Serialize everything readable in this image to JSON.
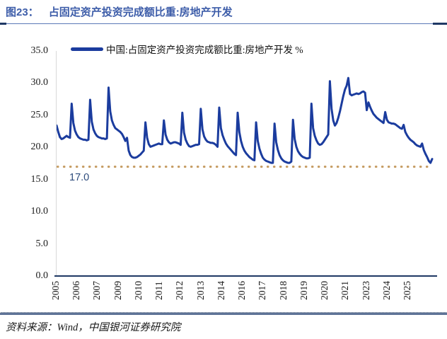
{
  "header": {
    "figure_label": "图23：",
    "title": "占固定资产投资完成额比重:房地产开发"
  },
  "legend": {
    "label": "中国:占固定资产投资完成额比重:房地产开发 %"
  },
  "annotation": {
    "ref_line_label": "17.0"
  },
  "footer": {
    "source": "资料来源：Wind，中国银河证券研究院"
  },
  "colors": {
    "series_line": "#1B3C9E",
    "reference_dotted": "#C69C62",
    "title_blue": "#3D5DA9",
    "axis": "#1F3864",
    "ref_label": "#2E4C7C"
  },
  "chart_data": {
    "type": "line",
    "title": "占固定资产投资完成额比重:房地产开发",
    "xlabel": "",
    "ylabel": "%",
    "ylim": [
      0,
      35
    ],
    "yticks": [
      0,
      5,
      10,
      15,
      20,
      25,
      30,
      35
    ],
    "ytick_decimals": 1,
    "grid": false,
    "legend_position": "top-left",
    "legend_entries": [
      "中国:占固定资产投资完成额比重:房地产开发 %"
    ],
    "xtick_labels": [
      "2005",
      "2006",
      "2007",
      "2009",
      "2010",
      "2011",
      "2012",
      "2013",
      "2014",
      "2016",
      "2017",
      "2018",
      "2019",
      "2020",
      "2021",
      "2023",
      "2024",
      "2025"
    ],
    "reference_line": {
      "value": 17.0,
      "label": "17.0",
      "style": "dotted"
    },
    "series": [
      {
        "name": "中国:占固定资产投资完成额比重:房地产开发",
        "unit": "%",
        "frequency": "monthly cumulative (YTD), Feb–Dec; 2005 starts Apr, 2025 ends mid-year",
        "values_by_year": {
          "2005": [
            23.4,
            22.4,
            21.6,
            21.3,
            21.4,
            21.6,
            21.8,
            21.6,
            21.5
          ],
          "2006": [
            26.8,
            23.8,
            22.6,
            22.0,
            21.6,
            21.4,
            21.3,
            21.2,
            21.2,
            21.1,
            21.2
          ],
          "2007": [
            27.4,
            24.0,
            22.8,
            22.2,
            21.8,
            21.6,
            21.5,
            21.4,
            21.4,
            21.3,
            21.4
          ],
          "2008": [
            29.3,
            25.6,
            24.2,
            23.5,
            23.0,
            22.8,
            22.6,
            22.4,
            22.1,
            21.6,
            21.0
          ],
          "2009": [
            21.5,
            19.5,
            18.8,
            18.5,
            18.4,
            18.4,
            18.5,
            18.7,
            18.9,
            19.2,
            19.5
          ],
          "2010": [
            23.9,
            21.5,
            20.5,
            20.1,
            20.2,
            20.3,
            20.4,
            20.5,
            20.6,
            20.5,
            20.5
          ],
          "2011": [
            24.2,
            22.0,
            21.2,
            20.8,
            20.6,
            20.7,
            20.8,
            20.8,
            20.7,
            20.6,
            20.4
          ],
          "2012": [
            25.4,
            22.3,
            21.2,
            20.6,
            20.2,
            20.1,
            20.2,
            20.3,
            20.4,
            20.4,
            20.5
          ],
          "2013": [
            26.0,
            22.8,
            21.7,
            21.2,
            20.9,
            20.8,
            20.7,
            20.7,
            20.6,
            20.4,
            20.1
          ],
          "2014": [
            26.2,
            23.0,
            21.9,
            21.2,
            20.6,
            20.2,
            19.9,
            19.6,
            19.3,
            19.0,
            18.8
          ],
          "2015": [
            25.4,
            22.4,
            21.0,
            20.1,
            19.5,
            19.1,
            18.8,
            18.5,
            18.3,
            18.1,
            18.0
          ],
          "2016": [
            23.9,
            21.0,
            19.8,
            19.0,
            18.4,
            18.1,
            17.9,
            17.8,
            17.7,
            17.6,
            17.6
          ],
          "2017": [
            23.7,
            20.8,
            19.6,
            18.8,
            18.3,
            18.0,
            17.8,
            17.7,
            17.6,
            17.6,
            17.8
          ],
          "2018": [
            24.3,
            21.3,
            20.1,
            19.4,
            19.0,
            18.7,
            18.5,
            18.4,
            18.3,
            18.3,
            18.4
          ],
          "2019": [
            26.8,
            23.0,
            21.8,
            21.1,
            20.6,
            20.4,
            20.5,
            20.8,
            21.2,
            21.6,
            22.0
          ],
          "2020": [
            30.3,
            26.0,
            24.2,
            23.4,
            23.8,
            24.6,
            25.6,
            26.8,
            28.0,
            29.0,
            29.6
          ],
          "2021": [
            30.8,
            28.3,
            28.1,
            28.2,
            28.3,
            28.4,
            28.3,
            28.4,
            28.6,
            28.7,
            28.5
          ],
          "2022": [
            25.8,
            27.0,
            26.3,
            25.7,
            25.2,
            24.9,
            24.6,
            24.4,
            24.2,
            24.0,
            23.8
          ],
          "2023": [
            25.5,
            24.3,
            23.9,
            23.8,
            23.7,
            23.7,
            23.6,
            23.4,
            23.2,
            23.0,
            22.9
          ],
          "2024": [
            23.5,
            22.4,
            21.9,
            21.5,
            21.2,
            21.0,
            20.8,
            20.5,
            20.3,
            20.2,
            20.1
          ],
          "2025": [
            20.6,
            19.6,
            19.0,
            18.5,
            17.9,
            17.6,
            18.2
          ]
        }
      }
    ]
  }
}
